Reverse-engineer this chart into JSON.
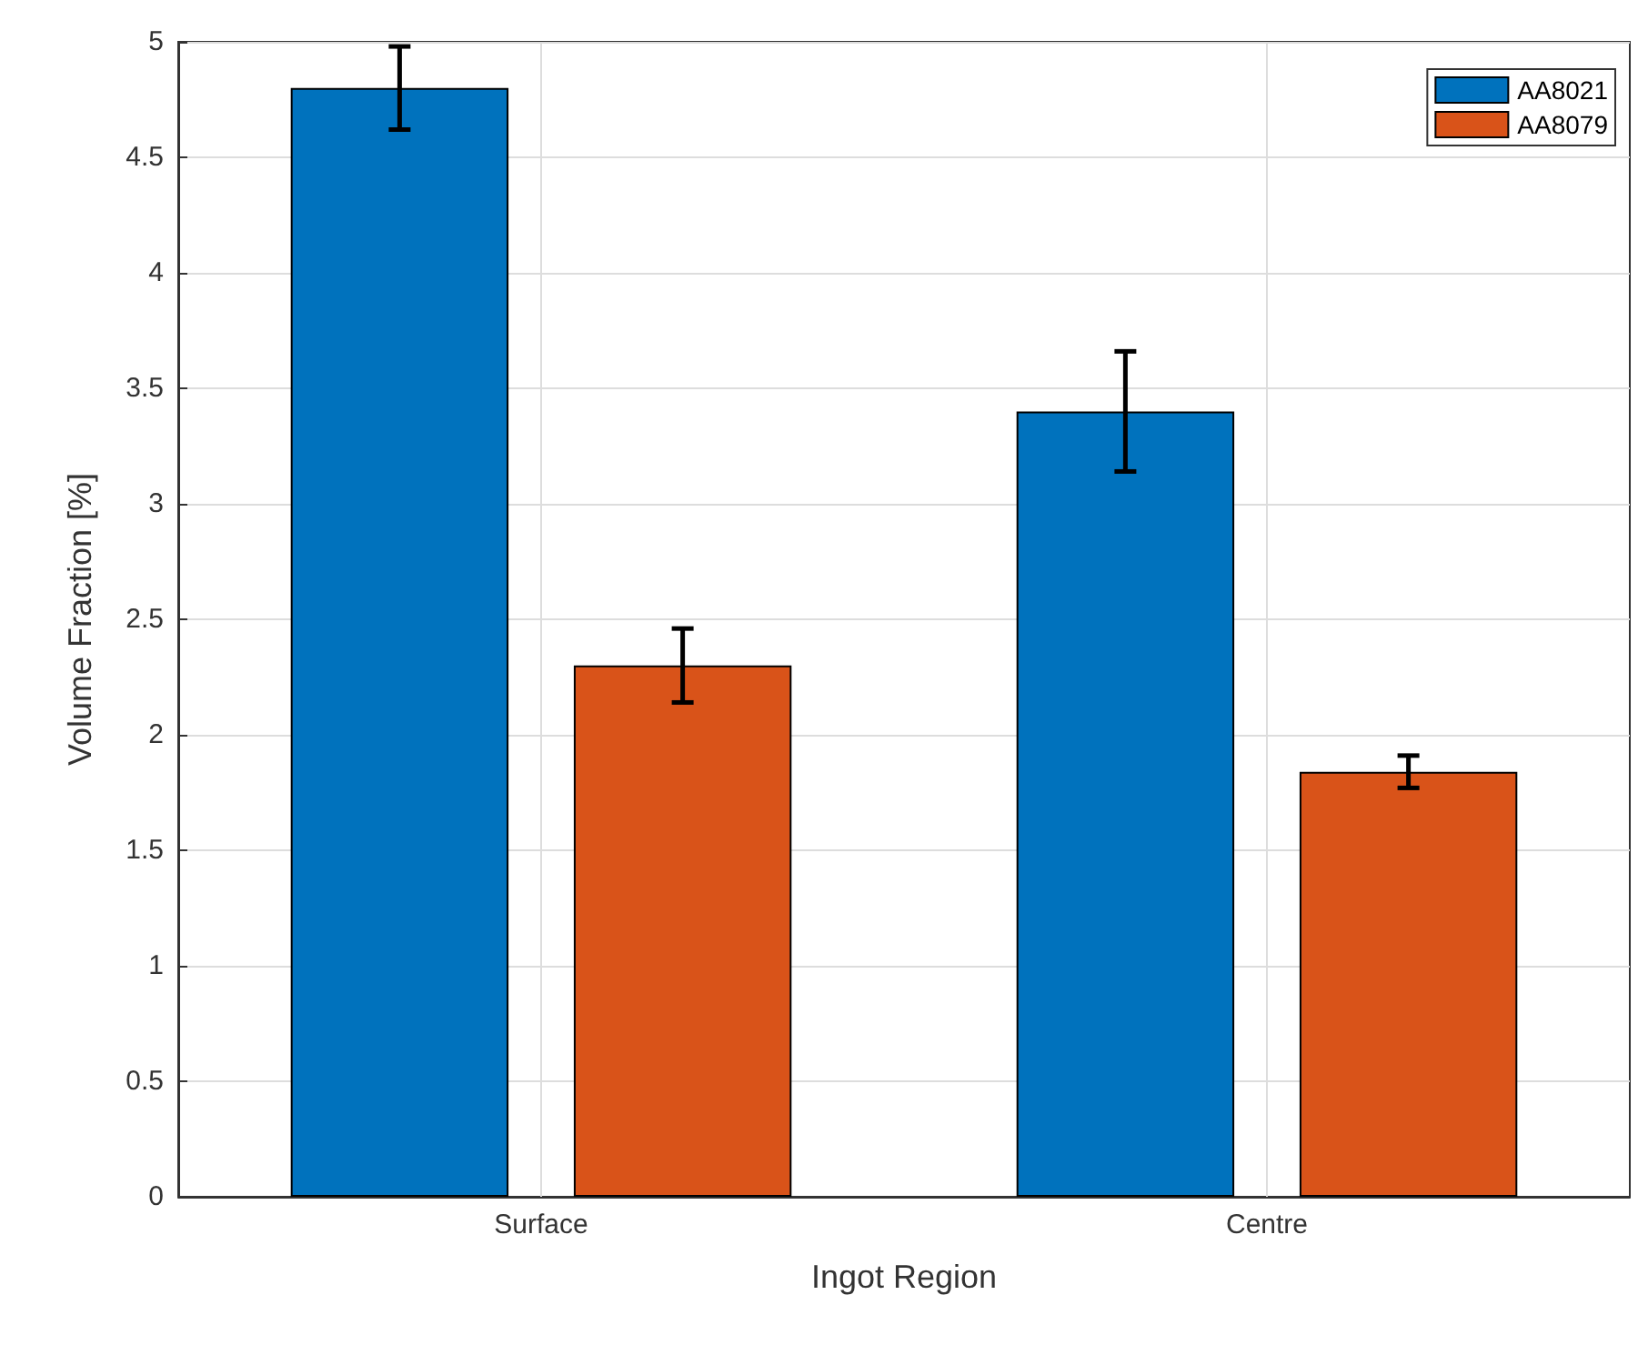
{
  "chart_data": {
    "type": "bar",
    "xlabel": "Ingot Region",
    "ylabel": "Volume Fraction [%]",
    "categories": [
      "Surface",
      "Centre"
    ],
    "series": [
      {
        "name": "AA8021",
        "color": "#0072bd",
        "values": [
          4.8,
          3.4
        ],
        "errors": [
          0.18,
          0.26
        ]
      },
      {
        "name": "AA8079",
        "color": "#d95319",
        "values": [
          2.3,
          1.84
        ],
        "errors": [
          0.16,
          0.07
        ]
      }
    ],
    "ylim": [
      0,
      5
    ],
    "yticks": [
      0,
      0.5,
      1,
      1.5,
      2,
      2.5,
      3,
      3.5,
      4,
      4.5,
      5
    ],
    "grid": true,
    "legend": "top right"
  }
}
